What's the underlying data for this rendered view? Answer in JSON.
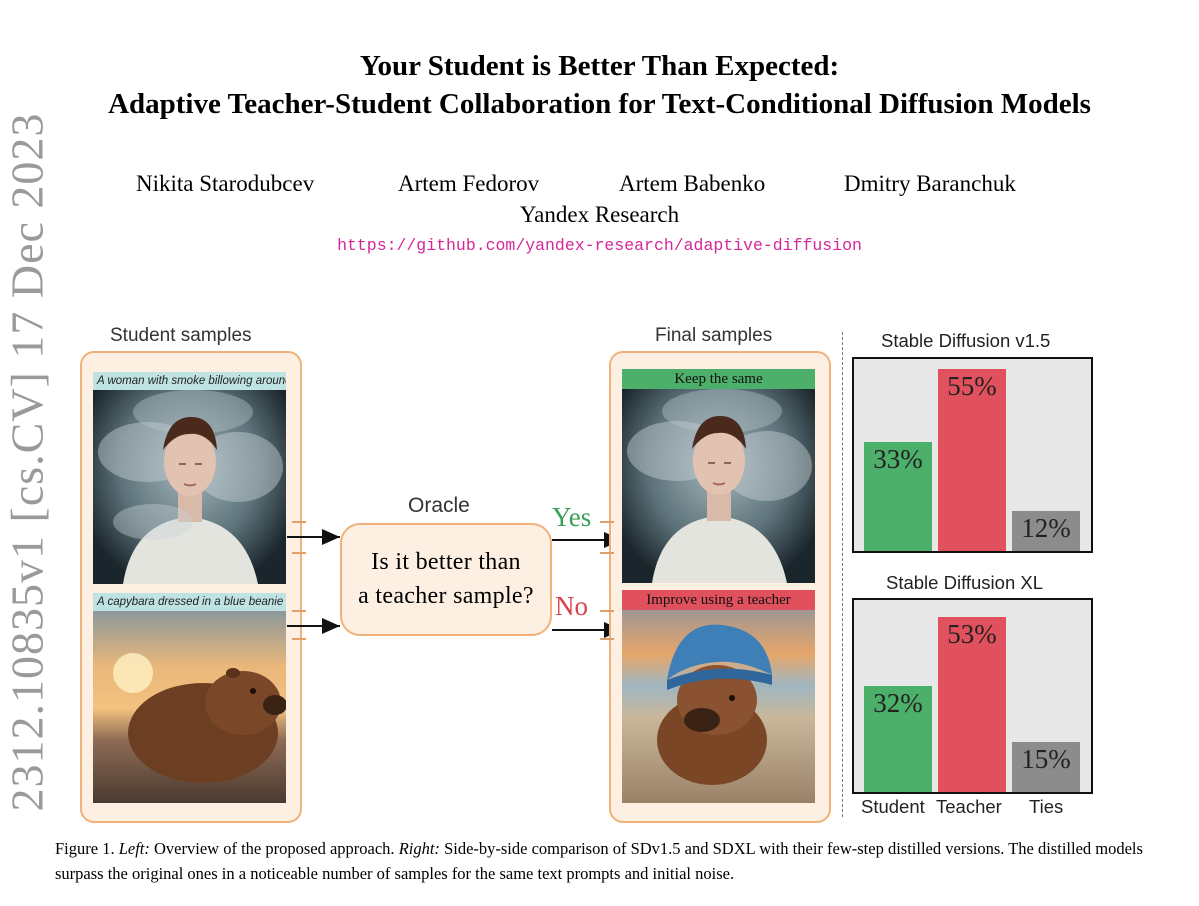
{
  "title_line1": "Your Student is Better Than Expected:",
  "title_line2": "Adaptive Teacher-Student Collaboration for Text-Conditional Diffusion Models",
  "authors": [
    "Nikita Starodubcev",
    "Artem Fedorov",
    "Artem Babenko",
    "Dmitry Baranchuk"
  ],
  "affiliation": "Yandex Research",
  "url": "https://github.com/yandex-research/adaptive-diffusion",
  "arxiv_stamp": "2312.10835v1  [cs.CV]  17 Dec 2023",
  "figure": {
    "student_title": "Student samples",
    "final_title": "Final samples",
    "prompt_woman": "A woman with smoke billowing around",
    "prompt_capybara": "A capybara  dressed in a blue beanie",
    "oracle_label": "Oracle",
    "oracle_question_line1": "Is it better than",
    "oracle_question_line2": "a teacher sample?",
    "yes_label": "Yes",
    "no_label": "No",
    "keep_tag": "Keep the same",
    "improve_tag": "Improve using a teacher",
    "colors": {
      "yes": "#3aa057",
      "no": "#d9424e",
      "panel_border": "#f0b27a",
      "panel_fill": "#fdf0e3"
    }
  },
  "chart_data": [
    {
      "type": "bar",
      "title": "Stable Diffusion v1.5",
      "categories": [
        "Student",
        "Teacher",
        "Ties"
      ],
      "values": [
        33,
        55,
        12
      ],
      "labels": [
        "33%",
        "55%",
        "12%"
      ],
      "colors": [
        "#4caf6a",
        "#e0515d",
        "#8c8c8c"
      ]
    },
    {
      "type": "bar",
      "title": "Stable Diffusion XL",
      "categories": [
        "Student",
        "Teacher",
        "Ties"
      ],
      "values": [
        32,
        53,
        15
      ],
      "labels": [
        "32%",
        "53%",
        "15%"
      ],
      "colors": [
        "#4caf6a",
        "#e0515d",
        "#8c8c8c"
      ]
    }
  ],
  "caption": {
    "prefix": "Figure 1. ",
    "left_label": "Left:",
    "left_text": " Overview of the proposed approach. ",
    "right_label": "Right:",
    "right_text": " Side-by-side comparison of SDv1.5 and SDXL with their few-step distilled versions. The distilled models surpass the original ones in a noticeable number of samples for the same text prompts and initial noise."
  }
}
